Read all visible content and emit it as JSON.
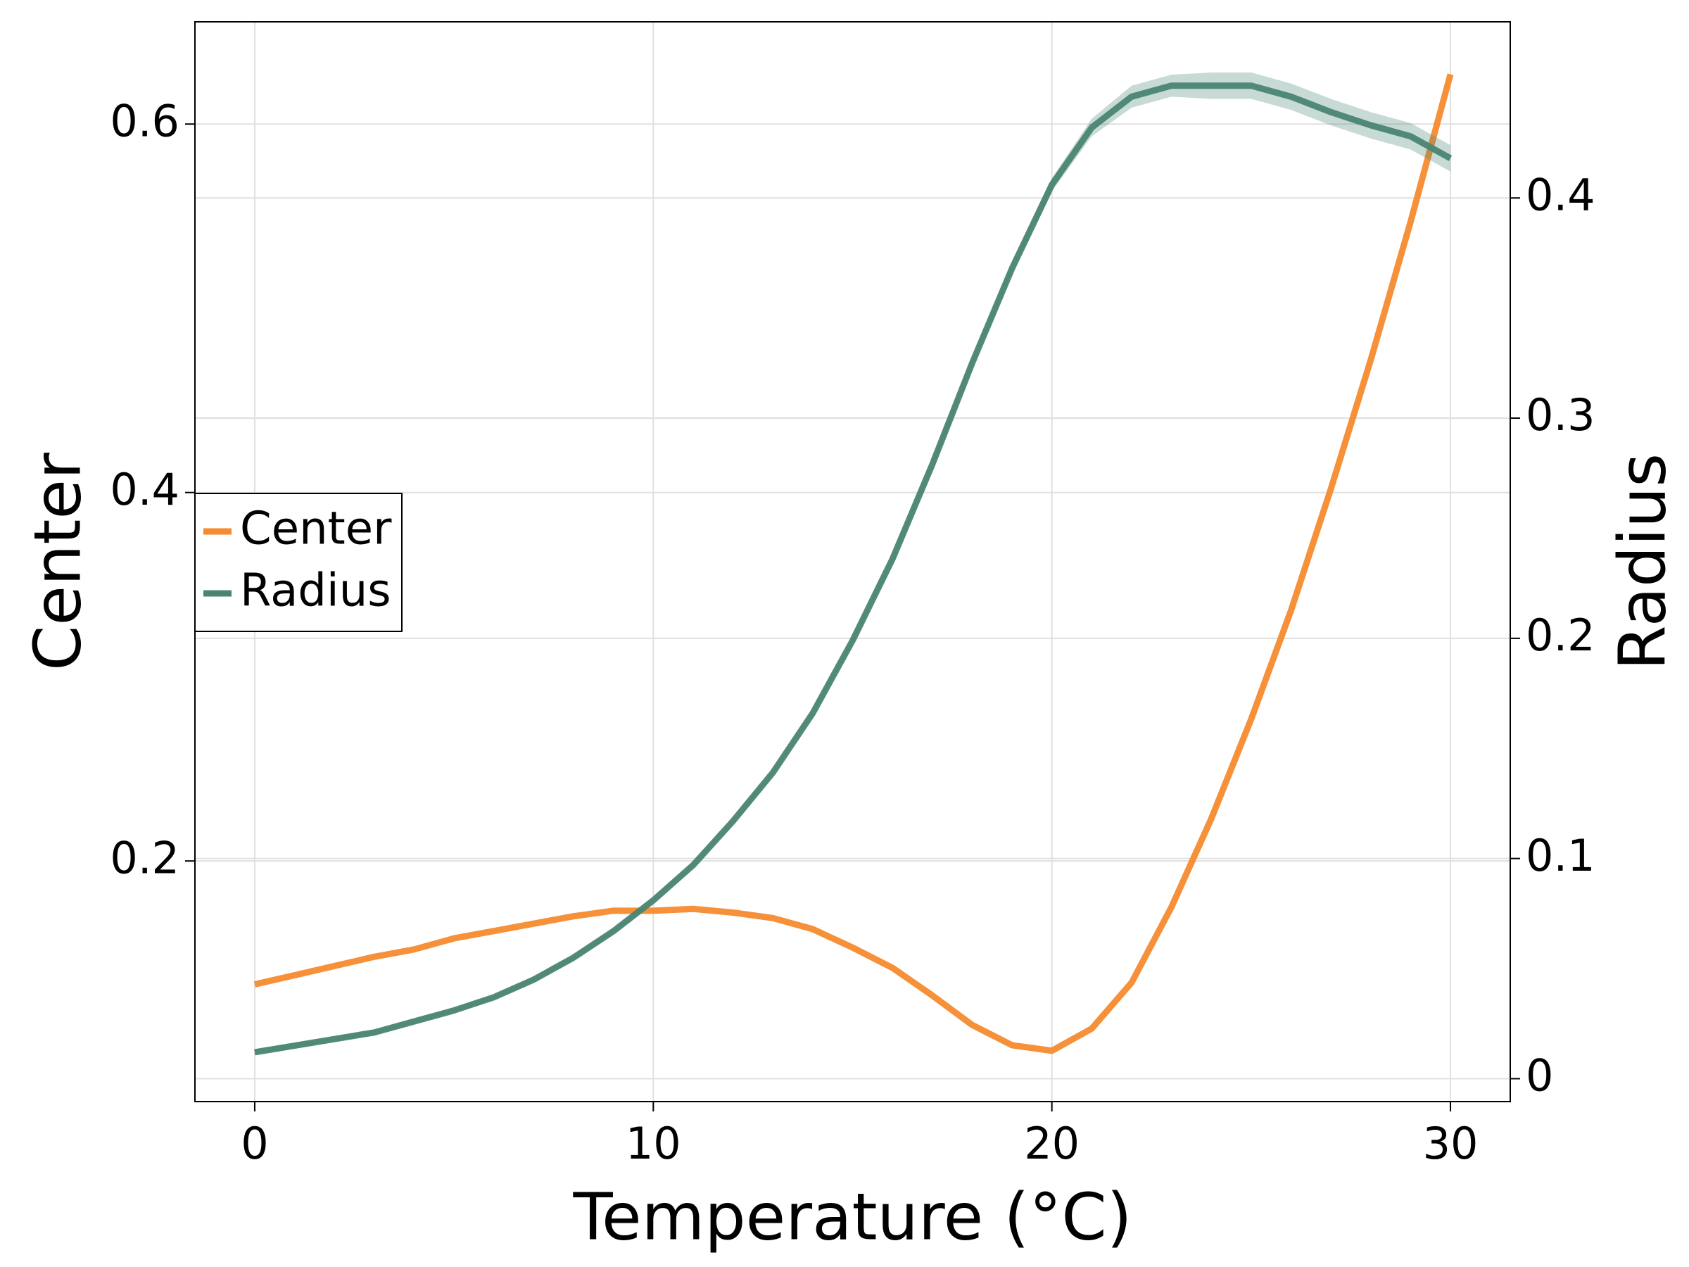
{
  "chart_data": {
    "type": "line",
    "x_label": "Temperature (°C)",
    "y_label": "Center",
    "y2_label": "Radius",
    "x": [
      0,
      1,
      2,
      3,
      4,
      5,
      6,
      7,
      8,
      9,
      10,
      11,
      12,
      13,
      14,
      15,
      16,
      17,
      18,
      19,
      20,
      21,
      22,
      23,
      24,
      25,
      26,
      27,
      28,
      29,
      30
    ],
    "xlim": [
      -1.5,
      31.5
    ],
    "xticks": [
      0,
      10,
      20,
      30
    ],
    "ylim": [
      0.0694,
      0.6555
    ],
    "yticks": [
      0.2,
      0.4,
      0.6
    ],
    "y2lim": [
      -0.0104,
      0.48
    ],
    "y2ticks": [
      0.0,
      0.1,
      0.2,
      0.3,
      0.4
    ],
    "grid": true,
    "legend": "left",
    "series": [
      {
        "name": "Center",
        "color": "#f58a2e",
        "axis": "y",
        "values": [
          0.133,
          0.138,
          0.143,
          0.148,
          0.152,
          0.158,
          0.162,
          0.166,
          0.17,
          0.173,
          0.173,
          0.174,
          0.172,
          0.169,
          0.163,
          0.153,
          0.142,
          0.127,
          0.111,
          0.1,
          0.097,
          0.109,
          0.134,
          0.175,
          0.223,
          0.277,
          0.336,
          0.402,
          0.472,
          0.547,
          0.627
        ]
      },
      {
        "name": "Radius",
        "color": "#4a8573",
        "axis": "y2",
        "values": [
          0.012,
          0.015,
          0.018,
          0.021,
          0.026,
          0.031,
          0.037,
          0.045,
          0.055,
          0.067,
          0.081,
          0.097,
          0.117,
          0.139,
          0.166,
          0.199,
          0.236,
          0.279,
          0.325,
          0.368,
          0.406,
          0.432,
          0.446,
          0.451,
          0.451,
          0.451,
          0.446,
          0.439,
          0.433,
          0.428,
          0.418
        ],
        "errors": [
          0.001,
          0.001,
          0.001,
          0.001,
          0.001,
          0.001,
          0.001,
          0.001,
          0.001,
          0.001,
          0.001,
          0.001,
          0.001,
          0.001,
          0.001,
          0.001,
          0.001,
          0.002,
          0.002,
          0.002,
          0.003,
          0.004,
          0.005,
          0.005,
          0.006,
          0.006,
          0.006,
          0.006,
          0.006,
          0.006,
          0.006
        ]
      }
    ]
  }
}
